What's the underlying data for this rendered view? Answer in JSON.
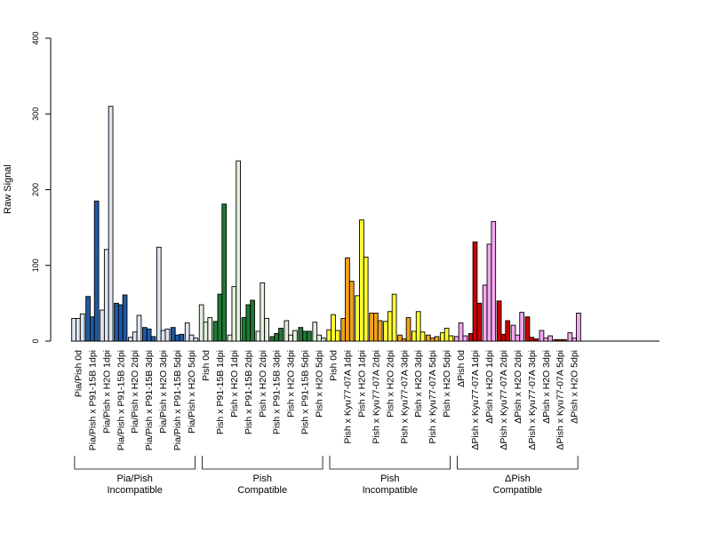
{
  "chart_data": {
    "type": "bar",
    "ylabel": "Raw Signal",
    "ylim": [
      0,
      400
    ],
    "yticks": [
      0,
      100,
      200,
      300,
      400
    ],
    "colors": {
      "pia_light": "#dde6f2",
      "pia_dark": "#1f5aa6",
      "pish_light": "#e3f0dd",
      "pish_dark": "#1f7a35",
      "kyu_yellow": "#ffff33",
      "kyu_orange": "#f2a21a",
      "dpish_red": "#cc0000",
      "dpish_pink": "#f5a8f0"
    },
    "categories": [
      {
        "label": "Pia/Pish 0d",
        "colors": [
          "pia_light"
        ],
        "values": [
          30,
          30,
          36
        ]
      },
      {
        "label": "Pia/Pish x P91-15B 1dpi",
        "colors": [
          "pia_dark"
        ],
        "values": [
          59,
          32,
          185
        ]
      },
      {
        "label": "Pia/Pish x H2O 1dpi",
        "colors": [
          "pia_light"
        ],
        "values": [
          41,
          121,
          310
        ]
      },
      {
        "label": "Pia/Pish x P91-15B 2dpi",
        "colors": [
          "pia_dark"
        ],
        "values": [
          50,
          48,
          61
        ]
      },
      {
        "label": "Pia/Pish x H2O 2dpi",
        "colors": [
          "pia_light"
        ],
        "values": [
          5,
          12,
          34
        ]
      },
      {
        "label": "Pia/Pish x P91-15B 3dpi",
        "colors": [
          "pia_dark"
        ],
        "values": [
          18,
          16,
          6
        ]
      },
      {
        "label": "Pia/Pish x H2O 3dpi",
        "colors": [
          "pia_light"
        ],
        "values": [
          124,
          14,
          16
        ]
      },
      {
        "label": "Pia/Pish x P91-15B 5dpi",
        "colors": [
          "pia_dark"
        ],
        "values": [
          18,
          8,
          9
        ]
      },
      {
        "label": "Pia/Pish x H2O 5dpi",
        "colors": [
          "pia_light"
        ],
        "values": [
          24,
          8,
          4
        ]
      },
      {
        "label": "Pish 0d",
        "colors": [
          "pish_light"
        ],
        "values": [
          48,
          25,
          31
        ]
      },
      {
        "label": "Pish x P91-15B 1dpi",
        "colors": [
          "pish_dark"
        ],
        "values": [
          26,
          62,
          181
        ]
      },
      {
        "label": "Pish x H2O 1dpi",
        "colors": [
          "pish_light"
        ],
        "values": [
          8,
          72,
          238
        ]
      },
      {
        "label": "Pish x P91-15B 2dpi",
        "colors": [
          "pish_dark"
        ],
        "values": [
          31,
          48,
          54
        ]
      },
      {
        "label": "Pish x H2O 2dpi",
        "colors": [
          "pish_light"
        ],
        "values": [
          13,
          77,
          30
        ]
      },
      {
        "label": "Pish x P91-15B 3dpi",
        "colors": [
          "pish_dark"
        ],
        "values": [
          6,
          10,
          17
        ]
      },
      {
        "label": "Pish x H2O 3dpi",
        "colors": [
          "pish_light"
        ],
        "values": [
          27,
          8,
          14
        ]
      },
      {
        "label": "Pish x P91-15B 5dpi",
        "colors": [
          "pish_dark"
        ],
        "values": [
          18,
          13,
          13
        ]
      },
      {
        "label": "Pish x H2O 5dpi",
        "colors": [
          "pish_light"
        ],
        "values": [
          25,
          8,
          4
        ]
      },
      {
        "label": "Pish 0d",
        "colors": [
          "kyu_yellow"
        ],
        "values": [
          15,
          35,
          14
        ]
      },
      {
        "label": "Pish x Kyu77-07A 1dpi",
        "colors": [
          "kyu_orange"
        ],
        "values": [
          30,
          110,
          79
        ]
      },
      {
        "label": "Pish x H2O 1dpi",
        "colors": [
          "kyu_yellow"
        ],
        "values": [
          60,
          160,
          111
        ]
      },
      {
        "label": "Pish x Kyu77-07A 2dpi",
        "colors": [
          "kyu_orange"
        ],
        "values": [
          37,
          37,
          27
        ]
      },
      {
        "label": "Pish x H2O 2dpi",
        "colors": [
          "kyu_yellow"
        ],
        "values": [
          26,
          39,
          62
        ]
      },
      {
        "label": "Pish x Kyu77-07A 3dpi",
        "colors": [
          "kyu_orange"
        ],
        "values": [
          8,
          3,
          31
        ]
      },
      {
        "label": "Pish x H2O 3dpi",
        "colors": [
          "kyu_yellow"
        ],
        "values": [
          13,
          39,
          12
        ]
      },
      {
        "label": "Pish x Kyu77-07A 5dpi",
        "colors": [
          "kyu_orange"
        ],
        "values": [
          8,
          4,
          6
        ]
      },
      {
        "label": "Pish x H2O 5dpi",
        "colors": [
          "kyu_yellow"
        ],
        "values": [
          11,
          17,
          7
        ]
      },
      {
        "label": "ΔPish 0d",
        "colors": [
          "dpish_pink"
        ],
        "values": [
          6,
          24,
          7
        ]
      },
      {
        "label": "ΔPish x Kyu77-07A 1dpi",
        "colors": [
          "dpish_red"
        ],
        "values": [
          10,
          131,
          50
        ]
      },
      {
        "label": "ΔPish x H2O 1dpi",
        "colors": [
          "dpish_pink"
        ],
        "values": [
          74,
          128,
          158
        ]
      },
      {
        "label": "ΔPish x Kyu77-07A 2dpi",
        "colors": [
          "dpish_red"
        ],
        "values": [
          53,
          9,
          27
        ]
      },
      {
        "label": "ΔPish x H2O 2dpi",
        "colors": [
          "dpish_pink"
        ],
        "values": [
          21,
          8,
          38
        ]
      },
      {
        "label": "ΔPish x Kyu77-07A 3dpi",
        "colors": [
          "dpish_red"
        ],
        "values": [
          32,
          5,
          3
        ]
      },
      {
        "label": "ΔPish x H2O 3dpi",
        "colors": [
          "dpish_pink"
        ],
        "values": [
          14,
          4,
          7
        ]
      },
      {
        "label": "ΔPish x Kyu77-07A 5dpi",
        "colors": [
          "dpish_red"
        ],
        "values": [
          2,
          2,
          2
        ]
      },
      {
        "label": "ΔPish x H2O 5dpi",
        "colors": [
          "dpish_pink"
        ],
        "values": [
          11,
          4,
          37
        ]
      }
    ],
    "groups": [
      {
        "name_line1": "Pia/Pish",
        "name_line2": "Incompatible",
        "start": 0,
        "end": 8
      },
      {
        "name_line1": "Pish",
        "name_line2": "Compatible",
        "start": 9,
        "end": 17
      },
      {
        "name_line1": "Pish",
        "name_line2": "Incompatible",
        "start": 18,
        "end": 26
      },
      {
        "name_line1": "ΔPish",
        "name_line2": "Compatible",
        "start": 27,
        "end": 35
      }
    ]
  }
}
